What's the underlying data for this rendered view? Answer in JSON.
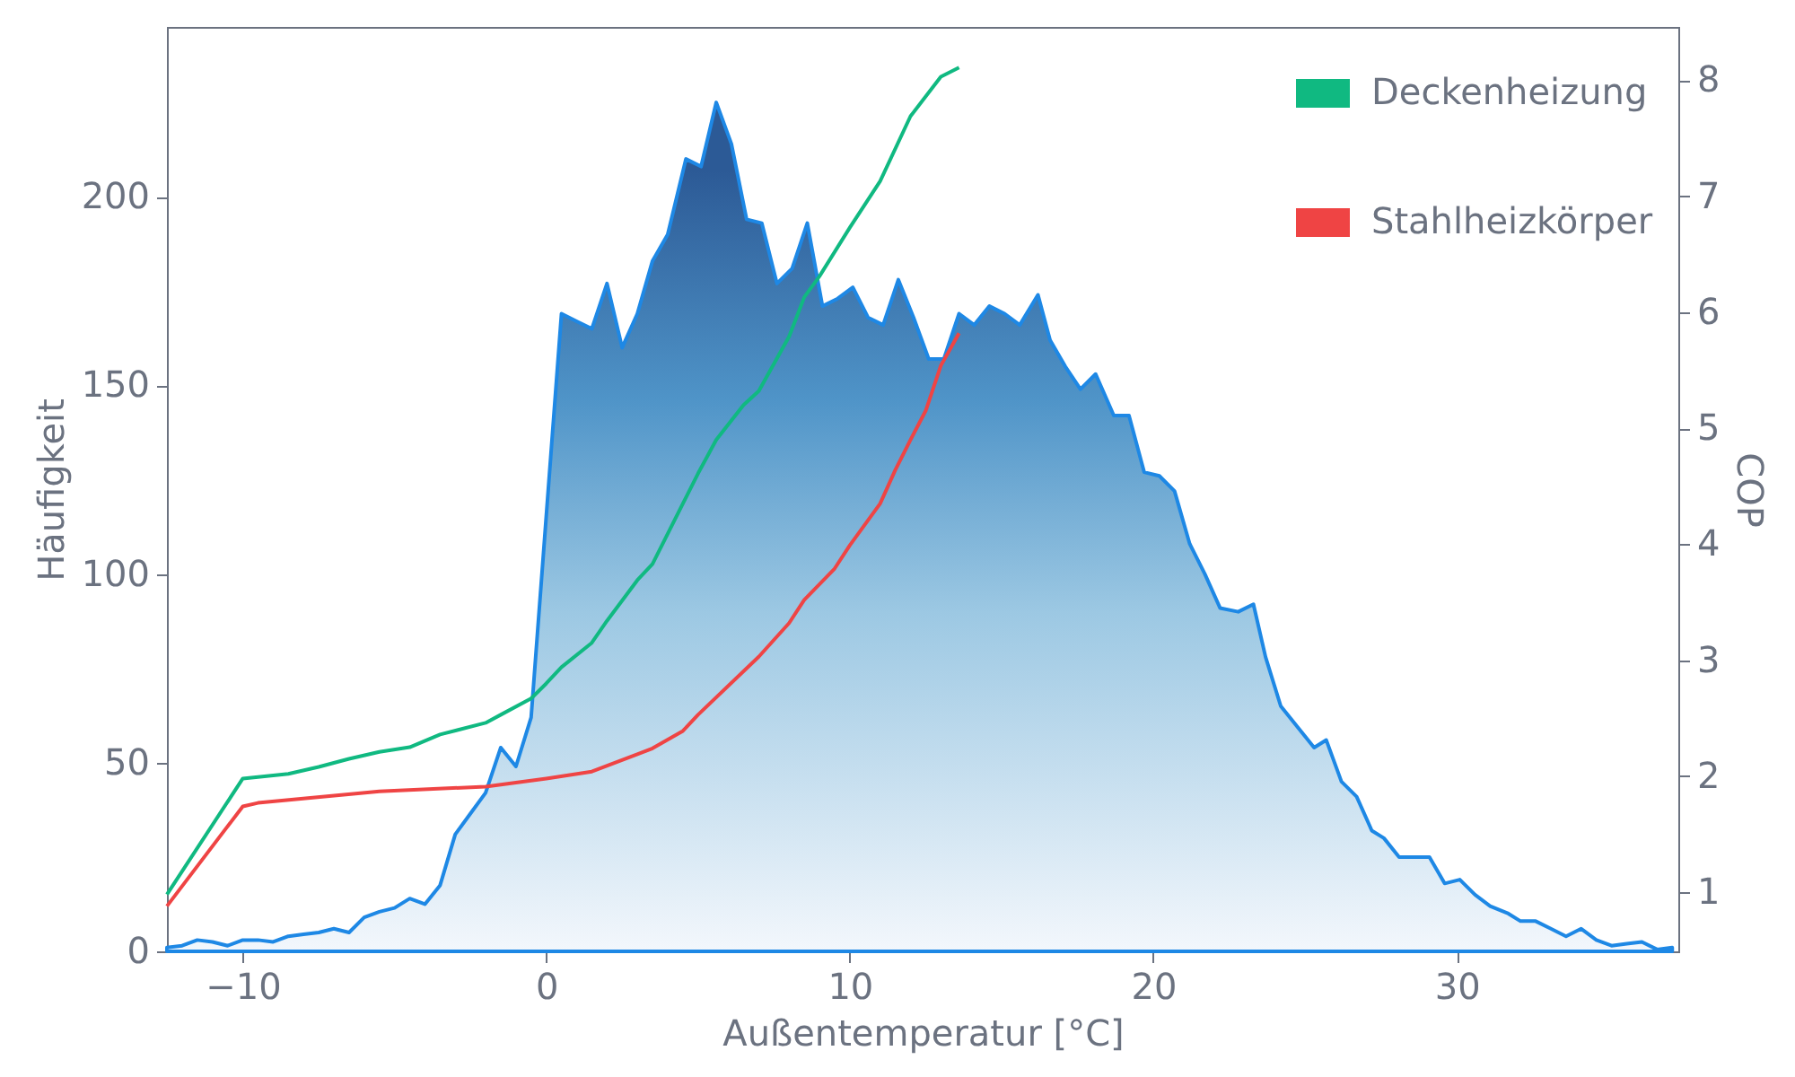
{
  "chart_data": {
    "type": "line",
    "xlabel": "Außentemperatur [°C]",
    "ylabel": "Häufigkeit",
    "y2label": "COP",
    "xlim": [
      -12.5,
      37.3
    ],
    "xticks": [
      -10,
      0,
      10,
      20,
      30
    ],
    "ylim": [
      0,
      245
    ],
    "yticks": [
      0,
      50,
      100,
      150,
      200
    ],
    "y2lim": [
      0.49,
      8.46
    ],
    "y2ticks": [
      1,
      2,
      3,
      4,
      5,
      6,
      7,
      8
    ],
    "grid": false,
    "legend": "top right",
    "series": [
      {
        "type": "area",
        "color": "#1e88e5",
        "x": [
          -12.5,
          -12,
          -11.5,
          -11,
          -10.5,
          -10,
          -9.5,
          -9,
          -8.5,
          -8,
          -7.5,
          -7,
          -6.5,
          -6,
          -5.5,
          -5,
          -4.5,
          -4,
          -3.5,
          -3,
          -2.5,
          -2,
          -1.5,
          -1,
          -0.5,
          0.5,
          1.0,
          1.5,
          2.0,
          2.5,
          3.0,
          3.5,
          4.0,
          4.6,
          5.1,
          5.6,
          6.1,
          6.6,
          7.1,
          7.6,
          8.1,
          8.6,
          9.1,
          9.6,
          10.1,
          10.6,
          11.1,
          11.6,
          12.1,
          12.6,
          13.1,
          13.6,
          14.1,
          14.6,
          15.1,
          15.6,
          16.2,
          16.6,
          17.1,
          17.6,
          18.1,
          18.7,
          19.2,
          19.7,
          20.2,
          20.7,
          21.2,
          21.7,
          22.2,
          22.8,
          23.3,
          23.7,
          24.2,
          24.8,
          25.3,
          25.7,
          26.2,
          26.7,
          27.2,
          27.6,
          28.1,
          28.6,
          29.1,
          29.6,
          30.1,
          30.6,
          31.1,
          31.7,
          32.1,
          32.6,
          33.1,
          33.6,
          34.1,
          34.6,
          35.1,
          35.6,
          36.1,
          36.6,
          37.1
        ],
        "values": [
          1,
          1.5,
          3,
          2.5,
          1.5,
          3,
          3,
          2.5,
          4,
          4.5,
          5,
          6,
          5,
          9,
          10.5,
          11.5,
          14,
          12.5,
          17.5,
          31,
          36.5,
          42,
          54,
          49,
          62,
          169,
          167,
          165,
          177,
          160,
          169,
          183,
          190,
          210,
          208,
          225,
          214,
          194,
          193,
          177,
          181,
          193,
          171,
          173,
          176,
          168,
          166,
          178,
          168,
          157,
          157,
          169,
          166,
          171,
          169,
          166,
          174,
          162,
          155,
          149,
          153,
          142,
          142,
          127,
          126,
          122,
          108,
          100,
          91,
          90,
          92,
          78,
          65,
          59,
          54,
          56,
          45,
          41,
          32,
          30,
          25,
          25,
          25,
          18,
          19,
          15,
          12,
          10,
          8,
          8,
          6,
          4,
          6,
          3,
          1.5,
          2,
          2.5,
          0.5,
          1
        ]
      },
      {
        "axis": "y2",
        "name": "Deckenheizung",
        "color": "#10b981",
        "x": [
          -12.5,
          -10,
          -8.5,
          -7.5,
          -6.5,
          -5.5,
          -4.5,
          -3.5,
          -2,
          -1.5,
          -0.5,
          0,
          0.5,
          1.5,
          2,
          3,
          3.5,
          4.5,
          5,
          5.6,
          6.5,
          7,
          8,
          8.5,
          9,
          10,
          11,
          12,
          13,
          13.6
        ],
        "values": [
          0.98,
          1.98,
          2.02,
          2.08,
          2.15,
          2.21,
          2.25,
          2.36,
          2.46,
          2.53,
          2.67,
          2.8,
          2.94,
          3.15,
          3.34,
          3.69,
          3.83,
          4.35,
          4.61,
          4.9,
          5.2,
          5.32,
          5.79,
          6.13,
          6.31,
          6.73,
          7.13,
          7.69,
          8.03,
          8.11
        ]
      },
      {
        "axis": "y2",
        "name": "Stahlheizkörper",
        "color": "#ef4444",
        "x": [
          -12.5,
          -10,
          -9.5,
          -5.5,
          -2,
          0,
          1.5,
          3,
          3.5,
          4.5,
          5,
          7,
          8,
          8.5,
          9.5,
          10,
          11,
          11.5,
          12,
          12.5,
          13,
          13.6
        ],
        "values": [
          0.88,
          1.74,
          1.77,
          1.87,
          1.91,
          1.98,
          2.04,
          2.19,
          2.24,
          2.39,
          2.53,
          3.03,
          3.32,
          3.52,
          3.79,
          3.99,
          4.35,
          4.64,
          4.9,
          5.15,
          5.54,
          5.82
        ]
      }
    ]
  }
}
